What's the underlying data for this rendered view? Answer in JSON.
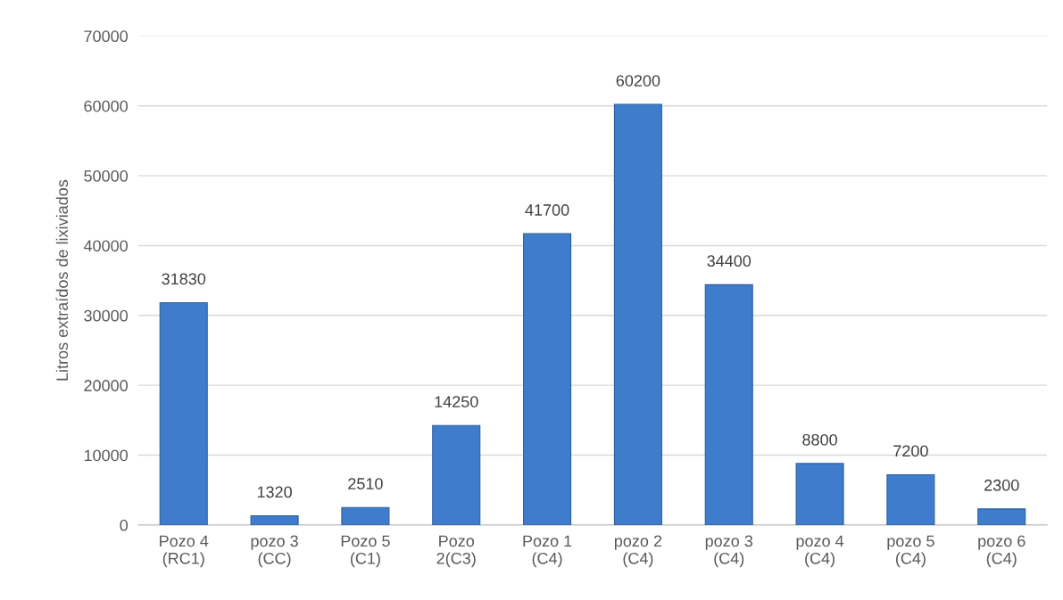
{
  "chart_data": {
    "type": "bar",
    "ylabel": "Litros extraídos de lixiviados",
    "categories": [
      "Pozo 4\n(RC1)",
      "pozo 3\n(CC)",
      "Pozo 5\n(C1)",
      "Pozo\n2(C3)",
      "Pozo 1\n(C4)",
      "pozo 2\n(C4)",
      "pozo 3\n(C4)",
      "pozo 4\n(C4)",
      "pozo 5\n(C4)",
      "pozo 6\n(C4)"
    ],
    "values": [
      31830,
      1320,
      2510,
      14250,
      41700,
      60200,
      34400,
      8800,
      7200,
      2300
    ],
    "color": "#3f7ccc",
    "ylim": [
      0,
      70000
    ],
    "yticks": [
      0,
      10000,
      20000,
      30000,
      40000,
      50000,
      60000,
      70000
    ],
    "grid": "y",
    "data_labels": true,
    "legend": false
  }
}
